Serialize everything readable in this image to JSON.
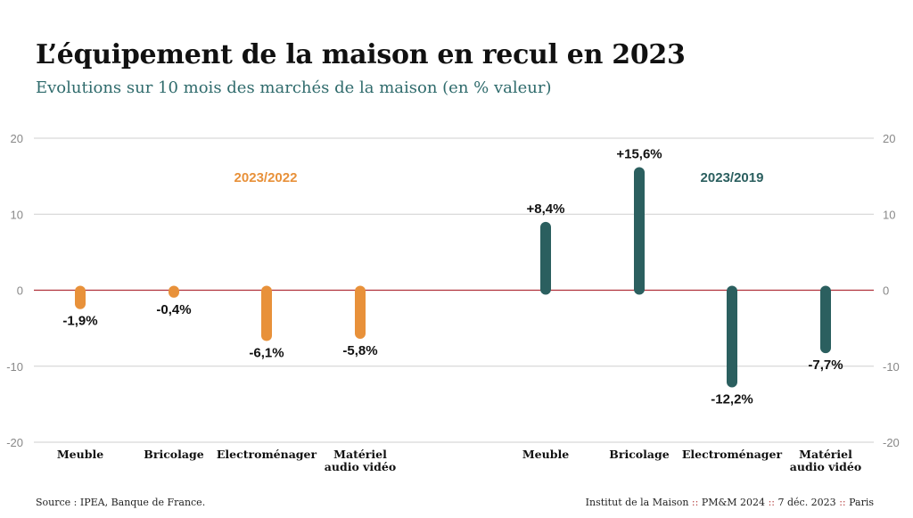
{
  "title": "L’équipement de la maison en recul en 2023",
  "subtitle": "Evolutions sur 10 mois des marchés de la maison (en % valeur)",
  "chart_data": {
    "type": "bar",
    "ylim": [
      -20,
      20
    ],
    "yticks": [
      "20",
      "10",
      "0",
      "-10",
      "-20"
    ],
    "grid": true,
    "groups": [
      {
        "name": "2023/2022",
        "color": "#e8913a",
        "categories": [
          "Meuble",
          "Bricolage",
          "Electroménager",
          "Matériel audio vidéo"
        ],
        "values": [
          -1.9,
          -0.4,
          -6.1,
          -5.8
        ],
        "labels": [
          "-1,9%",
          "-0,4%",
          "-6,1%",
          "-5,8%"
        ]
      },
      {
        "name": "2023/2019",
        "color": "#2b5f5f",
        "categories": [
          "Meuble",
          "Bricolage",
          "Electroménager",
          "Matériel audio vidéo"
        ],
        "values": [
          8.4,
          15.6,
          -12.2,
          -7.7
        ],
        "labels": [
          "+8,4%",
          "+15,6%",
          "-12,2%",
          "-7,7%"
        ]
      }
    ]
  },
  "footer": {
    "source": "Source : IPEA, Banque de France.",
    "org": "Institut de la Maison",
    "sep": "::",
    "event": "PM&M 2024",
    "date": "7 déc. 2023",
    "city": "Paris"
  }
}
